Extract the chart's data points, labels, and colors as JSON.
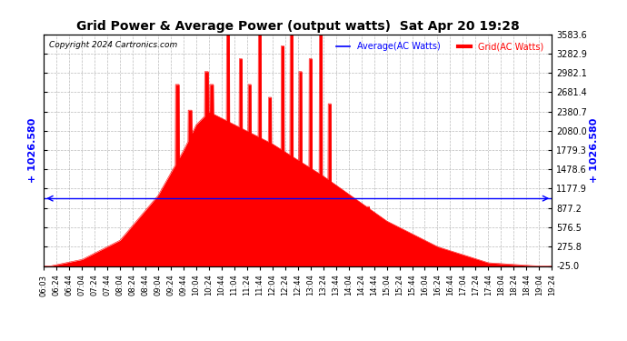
{
  "title": "Grid Power & Average Power (output watts)  Sat Apr 20 19:28",
  "copyright": "Copyright 2024 Cartronics.com",
  "legend_average": "Average(AC Watts)",
  "legend_grid": "Grid(AC Watts)",
  "average_value": 1026.58,
  "yticks": [
    -25.0,
    275.8,
    576.5,
    877.2,
    1177.9,
    1478.6,
    1779.3,
    2080.0,
    2380.7,
    2681.4,
    2982.1,
    3282.9,
    3583.6
  ],
  "ymin": -25.0,
  "ymax": 3583.6,
  "background_color": "#ffffff",
  "grid_color": "#aaaaaa",
  "fill_color": "#ff0000",
  "line_color": "#0000ff",
  "avg_label_color": "#0000ff",
  "grid_label_color": "#ff0000",
  "title_color": "#000000",
  "copyright_color": "#000000",
  "xtick_labels": [
    "06:03",
    "06:24",
    "06:44",
    "07:04",
    "07:24",
    "07:44",
    "08:04",
    "08:24",
    "08:44",
    "09:04",
    "09:24",
    "09:44",
    "10:04",
    "10:24",
    "10:44",
    "11:04",
    "11:24",
    "11:44",
    "12:04",
    "12:24",
    "12:44",
    "13:04",
    "13:24",
    "13:44",
    "14:04",
    "14:24",
    "14:44",
    "15:04",
    "15:24",
    "15:44",
    "16:04",
    "16:24",
    "16:44",
    "17:04",
    "17:24",
    "17:44",
    "18:04",
    "18:24",
    "18:44",
    "19:04",
    "19:24"
  ]
}
